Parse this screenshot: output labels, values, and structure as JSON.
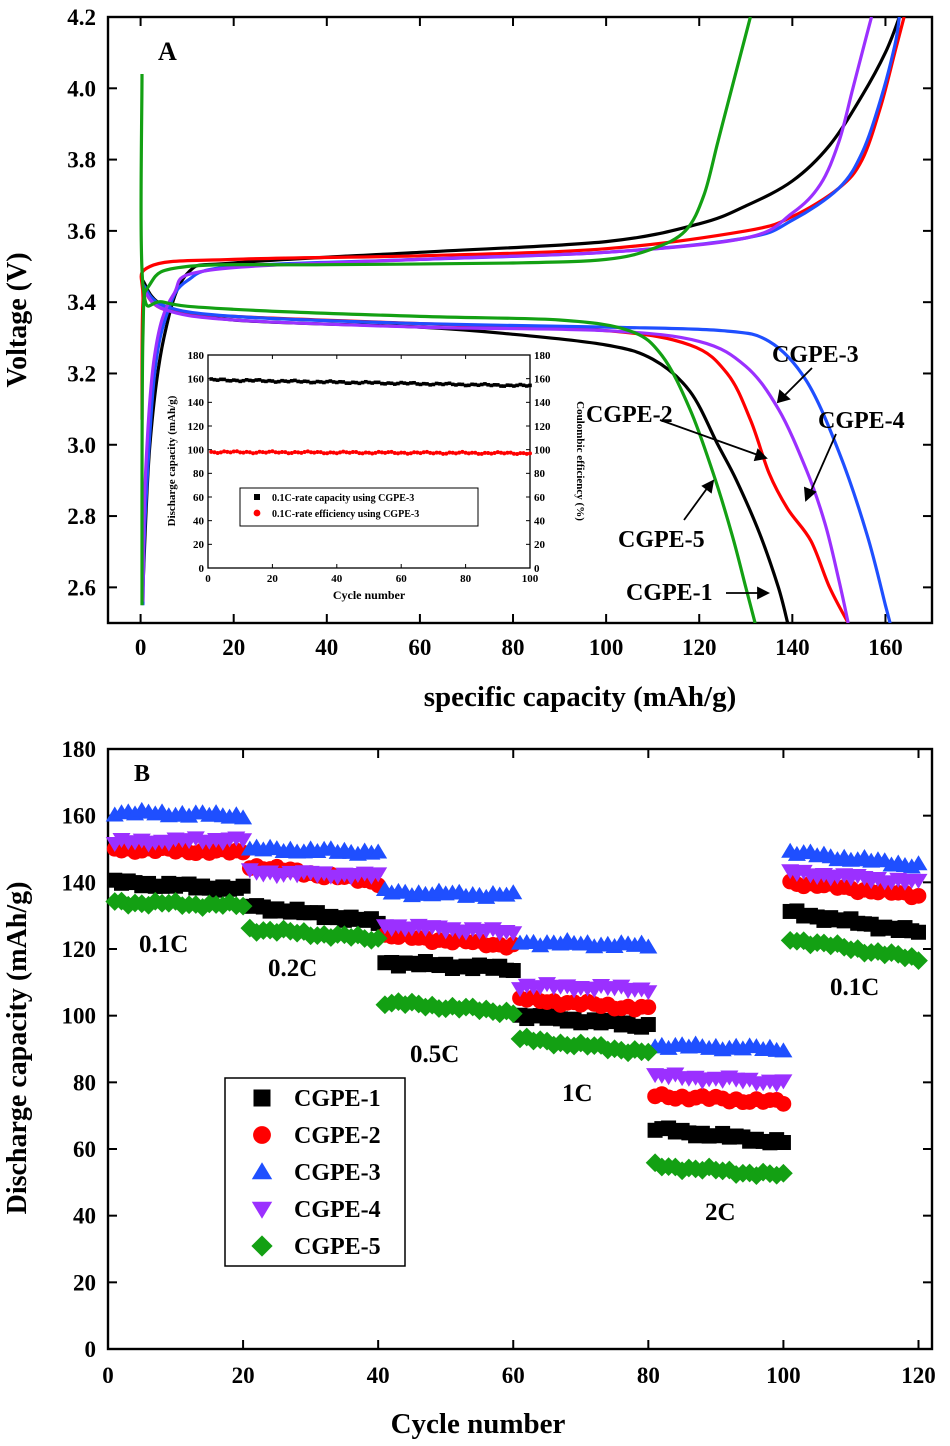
{
  "chart_data": [
    {
      "panel_label": "A",
      "type": "line",
      "xlabel": "specific capacity (mAh/g)",
      "ylabel": "Voltage (V)",
      "xlim": [
        -7,
        170
      ],
      "ylim": [
        2.5,
        4.2
      ],
      "xticks": [
        "0",
        "20",
        "40",
        "60",
        "80",
        "100",
        "120",
        "140",
        "160"
      ],
      "yticks": [
        "2.6",
        "2.8",
        "3.0",
        "3.2",
        "3.4",
        "3.6",
        "3.8",
        "4.0",
        "4.2"
      ],
      "colors": {
        "CGPE-1": "#000000",
        "CGPE-2": "#ff0000",
        "CGPE-3": "#1f4fff",
        "CGPE-4": "#9b30ff",
        "CGPE-5": "#13a013"
      },
      "series": [
        {
          "name": "CGPE-1",
          "color": "#000000",
          "charge": [
            [
              0.5,
              2.6
            ],
            [
              2,
              3.0
            ],
            [
              5,
              3.3
            ],
            [
              10,
              3.48
            ],
            [
              20,
              3.51
            ],
            [
              60,
              3.54
            ],
            [
              100,
              3.57
            ],
            [
              120,
              3.62
            ],
            [
              130,
              3.67
            ],
            [
              140,
              3.74
            ],
            [
              148,
              3.84
            ],
            [
              155,
              3.98
            ],
            [
              160,
              4.1
            ],
            [
              163,
              4.2
            ]
          ],
          "discharge": [
            [
              0.5,
              3.46
            ],
            [
              5,
              3.39
            ],
            [
              20,
              3.35
            ],
            [
              60,
              3.33
            ],
            [
              80,
              3.31
            ],
            [
              100,
              3.28
            ],
            [
              110,
              3.24
            ],
            [
              118,
              3.15
            ],
            [
              124,
              3.0
            ],
            [
              128,
              2.9
            ],
            [
              133,
              2.75
            ],
            [
              137,
              2.6
            ],
            [
              139,
              2.5
            ]
          ]
        },
        {
          "name": "CGPE-2",
          "color": "#ff0000",
          "charge": [
            [
              0.3,
              3.07
            ],
            [
              0.5,
              3.4
            ],
            [
              2,
              3.5
            ],
            [
              20,
              3.52
            ],
            [
              60,
              3.53
            ],
            [
              100,
              3.55
            ],
            [
              130,
              3.6
            ],
            [
              140,
              3.64
            ],
            [
              150,
              3.72
            ],
            [
              155,
              3.8
            ],
            [
              159,
              3.95
            ],
            [
              162,
              4.1
            ],
            [
              164,
              4.2
            ]
          ],
          "discharge": [
            [
              0.5,
              3.44
            ],
            [
              5,
              3.38
            ],
            [
              20,
              3.36
            ],
            [
              60,
              3.34
            ],
            [
              100,
              3.32
            ],
            [
              118,
              3.28
            ],
            [
              126,
              3.2
            ],
            [
              131,
              3.07
            ],
            [
              135,
              2.92
            ],
            [
              139,
              2.82
            ],
            [
              144,
              2.73
            ],
            [
              148,
              2.6
            ],
            [
              152,
              2.5
            ]
          ]
        },
        {
          "name": "CGPE-3",
          "color": "#1f4fff",
          "charge": [
            [
              0.5,
              2.55
            ],
            [
              1,
              2.8
            ],
            [
              3,
              3.2
            ],
            [
              6,
              3.38
            ],
            [
              10,
              3.46
            ],
            [
              20,
              3.5
            ],
            [
              60,
              3.52
            ],
            [
              100,
              3.54
            ],
            [
              130,
              3.58
            ],
            [
              140,
              3.63
            ],
            [
              150,
              3.72
            ],
            [
              155,
              3.82
            ],
            [
              159,
              3.97
            ],
            [
              162,
              4.12
            ],
            [
              163,
              4.2
            ]
          ],
          "discharge": [
            [
              0.5,
              3.45
            ],
            [
              5,
              3.39
            ],
            [
              20,
              3.36
            ],
            [
              60,
              3.34
            ],
            [
              100,
              3.33
            ],
            [
              125,
              3.32
            ],
            [
              135,
              3.29
            ],
            [
              143,
              3.18
            ],
            [
              150,
              2.98
            ],
            [
              156,
              2.75
            ],
            [
              160,
              2.55
            ],
            [
              161,
              2.5
            ]
          ]
        },
        {
          "name": "CGPE-4",
          "color": "#9b30ff",
          "charge": [
            [
              0.5,
              2.56
            ],
            [
              1,
              2.9
            ],
            [
              3,
              3.25
            ],
            [
              7,
              3.42
            ],
            [
              15,
              3.49
            ],
            [
              60,
              3.52
            ],
            [
              100,
              3.54
            ],
            [
              130,
              3.58
            ],
            [
              140,
              3.65
            ],
            [
              146,
              3.73
            ],
            [
              150,
              3.85
            ],
            [
              153,
              4.0
            ],
            [
              156,
              4.15
            ],
            [
              157,
              4.2
            ]
          ],
          "discharge": [
            [
              0.5,
              3.44
            ],
            [
              5,
              3.38
            ],
            [
              20,
              3.35
            ],
            [
              60,
              3.33
            ],
            [
              100,
              3.32
            ],
            [
              120,
              3.29
            ],
            [
              130,
              3.22
            ],
            [
              137,
              3.1
            ],
            [
              143,
              2.93
            ],
            [
              147,
              2.78
            ],
            [
              150,
              2.62
            ],
            [
              152,
              2.5
            ]
          ]
        },
        {
          "name": "CGPE-5",
          "color": "#13a013",
          "charge": [
            [
              0.3,
              2.55
            ],
            [
              0.5,
              3.3
            ],
            [
              2,
              3.45
            ],
            [
              10,
              3.5
            ],
            [
              40,
              3.505
            ],
            [
              80,
              3.51
            ],
            [
              100,
              3.52
            ],
            [
              110,
              3.55
            ],
            [
              117,
              3.6
            ],
            [
              121,
              3.7
            ],
            [
              124,
              3.85
            ],
            [
              127,
              4.0
            ],
            [
              129,
              4.1
            ],
            [
              131,
              4.2
            ]
          ],
          "discharge": [
            [
              0.3,
              4.04
            ],
            [
              0.5,
              3.45
            ],
            [
              5,
              3.4
            ],
            [
              20,
              3.38
            ],
            [
              60,
              3.36
            ],
            [
              90,
              3.35
            ],
            [
              105,
              3.32
            ],
            [
              112,
              3.25
            ],
            [
              118,
              3.1
            ],
            [
              123,
              2.92
            ],
            [
              127,
              2.75
            ],
            [
              130,
              2.6
            ],
            [
              132,
              2.5
            ]
          ]
        }
      ],
      "labels": [
        {
          "text": "CGPE-3",
          "series": "CGPE-3"
        },
        {
          "text": "CGPE-2",
          "series": "CGPE-2"
        },
        {
          "text": "CGPE-4",
          "series": "CGPE-4"
        },
        {
          "text": "CGPE-5",
          "series": "CGPE-5"
        },
        {
          "text": "CGPE-1",
          "series": "CGPE-1"
        }
      ],
      "inset": {
        "type": "scatter",
        "xlabel": "Cycle number",
        "ylabel_left": "Discharge capacity (mAh/g)",
        "ylabel_right": "Coulombic efficiency (%)",
        "xlim": [
          0,
          100
        ],
        "ylim": [
          0,
          180
        ],
        "xticks": [
          "0",
          "20",
          "40",
          "60",
          "80",
          "100"
        ],
        "yticks": [
          "0",
          "20",
          "40",
          "60",
          "80",
          "100",
          "120",
          "140",
          "160",
          "180"
        ],
        "series": [
          {
            "name": "0.1C-rate capacity using CGPE-3",
            "color": "#000000",
            "start": 159,
            "end": 154
          },
          {
            "name": "0.1C-rate efficiency using CGPE-3",
            "color": "#ff0000",
            "start": 98,
            "end": 97
          }
        ]
      }
    },
    {
      "panel_label": "B",
      "type": "scatter",
      "xlabel": "Cycle number",
      "ylabel": "Discharge capacity (mAh/g)",
      "xlim": [
        0,
        122
      ],
      "ylim": [
        0,
        180
      ],
      "xticks": [
        "0",
        "20",
        "40",
        "60",
        "80",
        "100",
        "120"
      ],
      "yticks": [
        "0",
        "20",
        "40",
        "60",
        "80",
        "100",
        "120",
        "140",
        "160",
        "180"
      ],
      "legend_position": "lower-left",
      "rate_labels": [
        "0.1C",
        "0.2C",
        "0.5C",
        "1C",
        "2C",
        "0.1C"
      ],
      "series": [
        {
          "name": "CGPE-1",
          "color": "#000000",
          "marker": "square",
          "segments": [
            [
              140,
              138
            ],
            [
              133,
              128
            ],
            [
              116,
              114
            ],
            [
              100,
              97
            ],
            [
              66,
              62
            ],
            [
              131,
              125
            ]
          ]
        },
        {
          "name": "CGPE-2",
          "color": "#ff0000",
          "marker": "circle",
          "segments": [
            [
              150,
              149
            ],
            [
              145,
              140
            ],
            [
              124,
              121
            ],
            [
              105,
              102
            ],
            [
              76,
              74
            ],
            [
              140,
              136
            ]
          ]
        },
        {
          "name": "CGPE-3",
          "color": "#1f4fff",
          "marker": "triangle-up",
          "segments": [
            [
              161,
              160
            ],
            [
              150,
              149
            ],
            [
              137,
              136
            ],
            [
              122,
              121
            ],
            [
              91,
              90
            ],
            [
              149,
              145
            ]
          ]
        },
        {
          "name": "CGPE-4",
          "color": "#9b30ff",
          "marker": "triangle-down",
          "segments": [
            [
              152,
              153
            ],
            [
              143,
              142
            ],
            [
              127,
              125
            ],
            [
              109,
              108
            ],
            [
              82,
              80
            ],
            [
              143,
              140
            ]
          ]
        },
        {
          "name": "CGPE-5",
          "color": "#13a013",
          "marker": "diamond",
          "segments": [
            [
              134,
              133
            ],
            [
              126,
              123
            ],
            [
              104,
              101
            ],
            [
              93,
              89
            ],
            [
              55,
              52
            ],
            [
              123,
              117
            ]
          ]
        }
      ]
    }
  ]
}
